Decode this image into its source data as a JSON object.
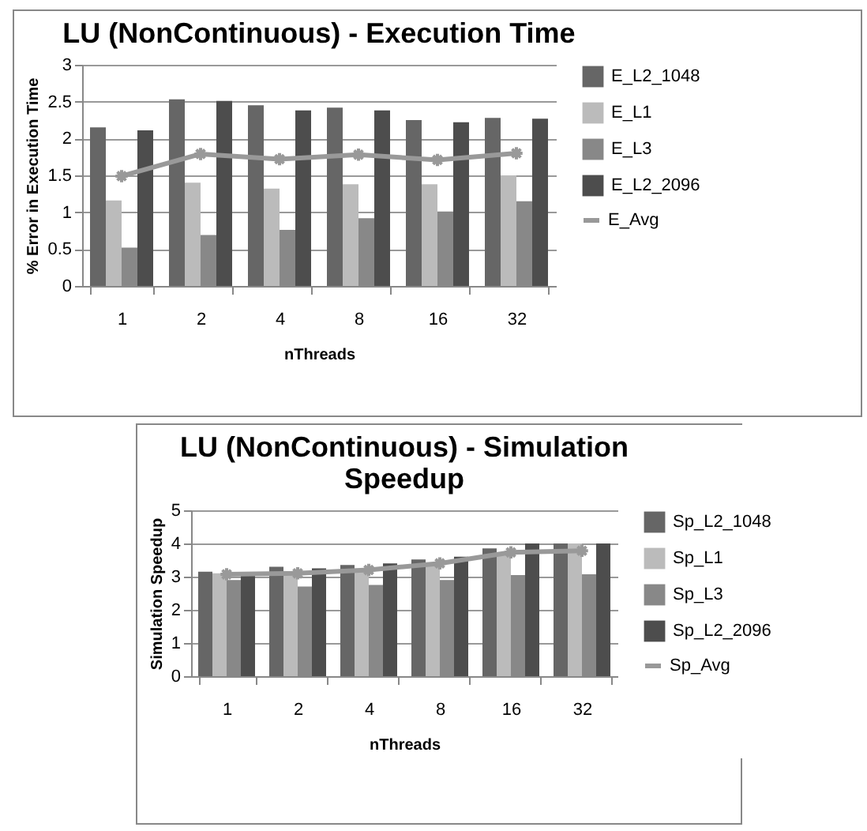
{
  "chart_data": [
    {
      "type": "bar",
      "title": "LU (NonContinuous) - Execution Time",
      "xlabel": "nThreads",
      "ylabel": "% Error in Execution Time",
      "categories": [
        "1",
        "2",
        "4",
        "8",
        "16",
        "32"
      ],
      "series": [
        {
          "name": "E_L2_1048",
          "color": "#666666",
          "values": [
            2.15,
            2.53,
            2.45,
            2.42,
            2.25,
            2.28
          ]
        },
        {
          "name": "E_L1",
          "color": "#bbbbbb",
          "values": [
            1.16,
            1.4,
            1.32,
            1.38,
            1.38,
            1.5
          ]
        },
        {
          "name": "E_L3",
          "color": "#888888",
          "values": [
            0.52,
            0.69,
            0.76,
            0.92,
            1.01,
            1.15
          ]
        },
        {
          "name": "E_L2_2096",
          "color": "#4d4d4d",
          "values": [
            2.11,
            2.51,
            2.38,
            2.38,
            2.22,
            2.27
          ]
        },
        {
          "name": "E_Avg",
          "type": "line",
          "color": "#999999",
          "marker": "cross",
          "values": [
            1.49,
            1.79,
            1.72,
            1.78,
            1.71,
            1.8
          ]
        }
      ],
      "ylim": [
        0,
        3
      ],
      "yticks": [
        0,
        0.5,
        1,
        1.5,
        2,
        2.5,
        3
      ],
      "grid": "y",
      "legend": "right"
    },
    {
      "type": "bar",
      "title": "LU (NonContinuous) - Simulation Speedup",
      "xlabel": "nThreads",
      "ylabel": "Simulation Speedup",
      "categories": [
        "1",
        "2",
        "4",
        "8",
        "16",
        "32"
      ],
      "series": [
        {
          "name": "Sp_L2_1048",
          "color": "#666666",
          "values": [
            3.15,
            3.3,
            3.35,
            3.52,
            3.85,
            4.0
          ]
        },
        {
          "name": "Sp_L1",
          "color": "#bbbbbb",
          "values": [
            3.1,
            3.1,
            3.2,
            3.4,
            3.7,
            4.0
          ]
        },
        {
          "name": "Sp_L3",
          "color": "#888888",
          "values": [
            2.9,
            2.7,
            2.75,
            2.9,
            3.05,
            3.07
          ]
        },
        {
          "name": "Sp_L2_2096",
          "color": "#4d4d4d",
          "values": [
            3.05,
            3.25,
            3.4,
            3.6,
            4.0,
            4.0
          ]
        },
        {
          "name": "Sp_Avg",
          "type": "line",
          "color": "#999999",
          "marker": "cross",
          "values": [
            3.07,
            3.1,
            3.2,
            3.4,
            3.73,
            3.78
          ]
        }
      ],
      "ylim": [
        0,
        5
      ],
      "yticks": [
        0,
        1,
        2,
        3,
        4,
        5
      ],
      "grid": "y",
      "legend": "right"
    }
  ]
}
